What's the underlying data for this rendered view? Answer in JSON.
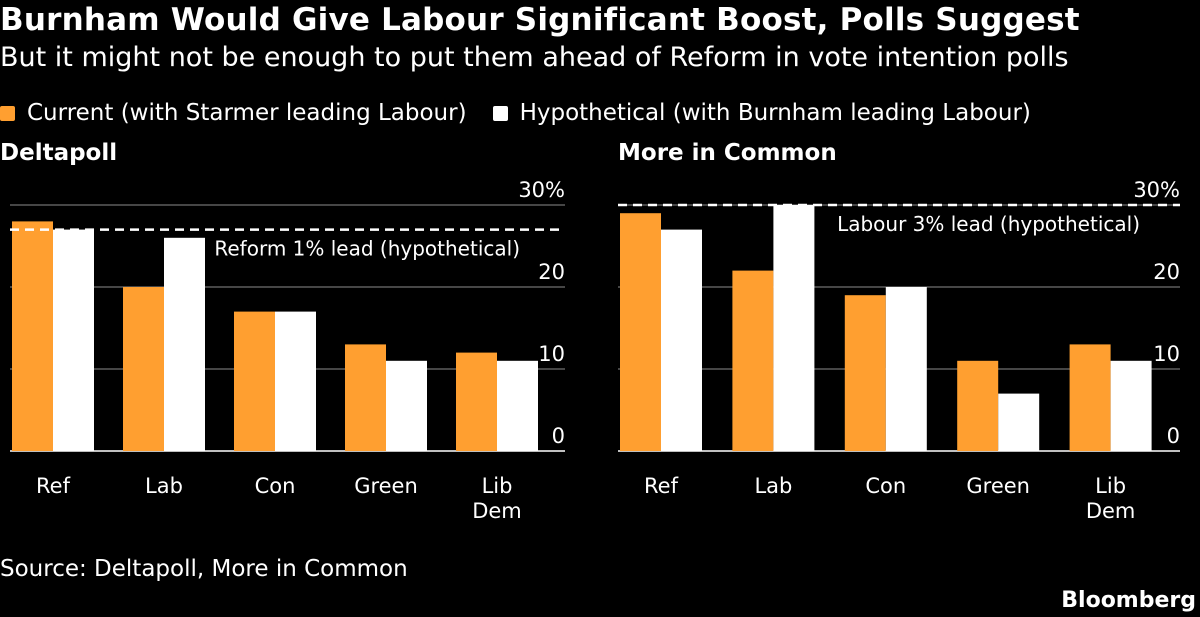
{
  "header": {
    "title": "Burnham Would Give Labour Significant Boost, Polls Suggest",
    "subtitle": "But it might not be enough to put them ahead of Reform in vote intention polls"
  },
  "legend": {
    "items": [
      {
        "label": "Current (with Starmer leading Labour)",
        "color": "#ff9f30"
      },
      {
        "label": "Hypothetical (with Burnham leading Labour)",
        "color": "#ffffff"
      }
    ]
  },
  "chart_data": [
    {
      "type": "bar",
      "title": "Deltapoll",
      "categories": [
        [
          "Ref"
        ],
        [
          "Lab"
        ],
        [
          "Con"
        ],
        [
          "Green"
        ],
        [
          "Lib",
          "Dem"
        ]
      ],
      "series": [
        {
          "name": "Current (with Starmer leading Labour)",
          "values": [
            28,
            20,
            17,
            13,
            12
          ],
          "color": "#ff9f30"
        },
        {
          "name": "Hypothetical (with Burnham leading Labour)",
          "values": [
            27,
            26,
            17,
            11,
            11
          ],
          "color": "#ffffff"
        }
      ],
      "yticks": [
        "0",
        "10",
        "20",
        "30%"
      ],
      "ylim": [
        0,
        30
      ],
      "reference_line": {
        "value": 27,
        "label": "Reform 1% lead (hypothetical)"
      }
    },
    {
      "type": "bar",
      "title": "More in Common",
      "categories": [
        [
          "Ref"
        ],
        [
          "Lab"
        ],
        [
          "Con"
        ],
        [
          "Green"
        ],
        [
          "Lib",
          "Dem"
        ]
      ],
      "series": [
        {
          "name": "Current (with Starmer leading Labour)",
          "values": [
            29,
            22,
            19,
            11,
            13
          ],
          "color": "#ff9f30"
        },
        {
          "name": "Hypothetical (with Burnham leading Labour)",
          "values": [
            27,
            30,
            20,
            7,
            11
          ],
          "color": "#ffffff"
        }
      ],
      "yticks": [
        "0",
        "10",
        "20",
        "30%"
      ],
      "ylim": [
        0,
        30
      ],
      "reference_line": {
        "value": 30,
        "label": "Labour 3% lead (hypothetical)"
      }
    }
  ],
  "footer": {
    "source": "Source: Deltapoll, More in Common",
    "brand": "Bloomberg"
  }
}
